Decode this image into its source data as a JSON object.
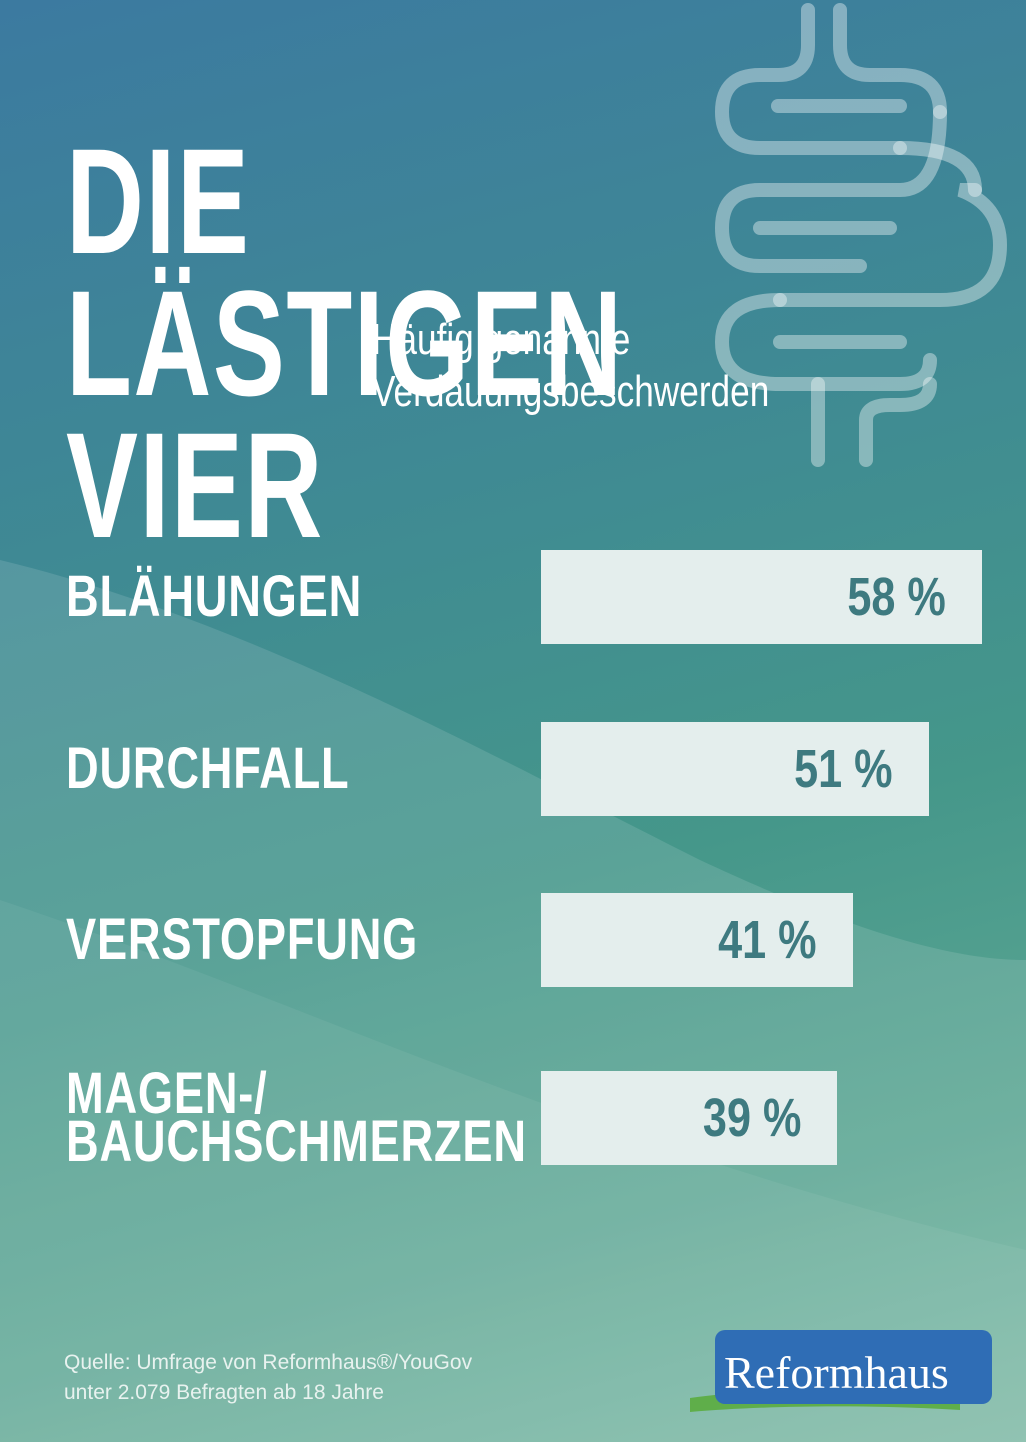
{
  "chart_data": {
    "type": "bar",
    "orientation": "horizontal",
    "title": "DIE LÄSTIGEN\nVIER",
    "subtitle": "Häufig genannte\nVerdauungsbeschwerden",
    "categories": [
      "BLÄHUNGEN",
      "DURCHFALL",
      "VERSTOPFUNG",
      "MAGEN-/\nBAUCHSCHMERZEN"
    ],
    "values": [
      58,
      51,
      41,
      39
    ],
    "value_labels": [
      "58 %",
      "51 %",
      "41 %",
      "39 %"
    ],
    "color": "#e4eeed",
    "label_color": "#3e7a80",
    "source": "Quelle: Umfrage von Reformhaus®/YouGov\nunter 2.079 Befragten ab 18 Jahre",
    "logo": "Reformhaus"
  }
}
